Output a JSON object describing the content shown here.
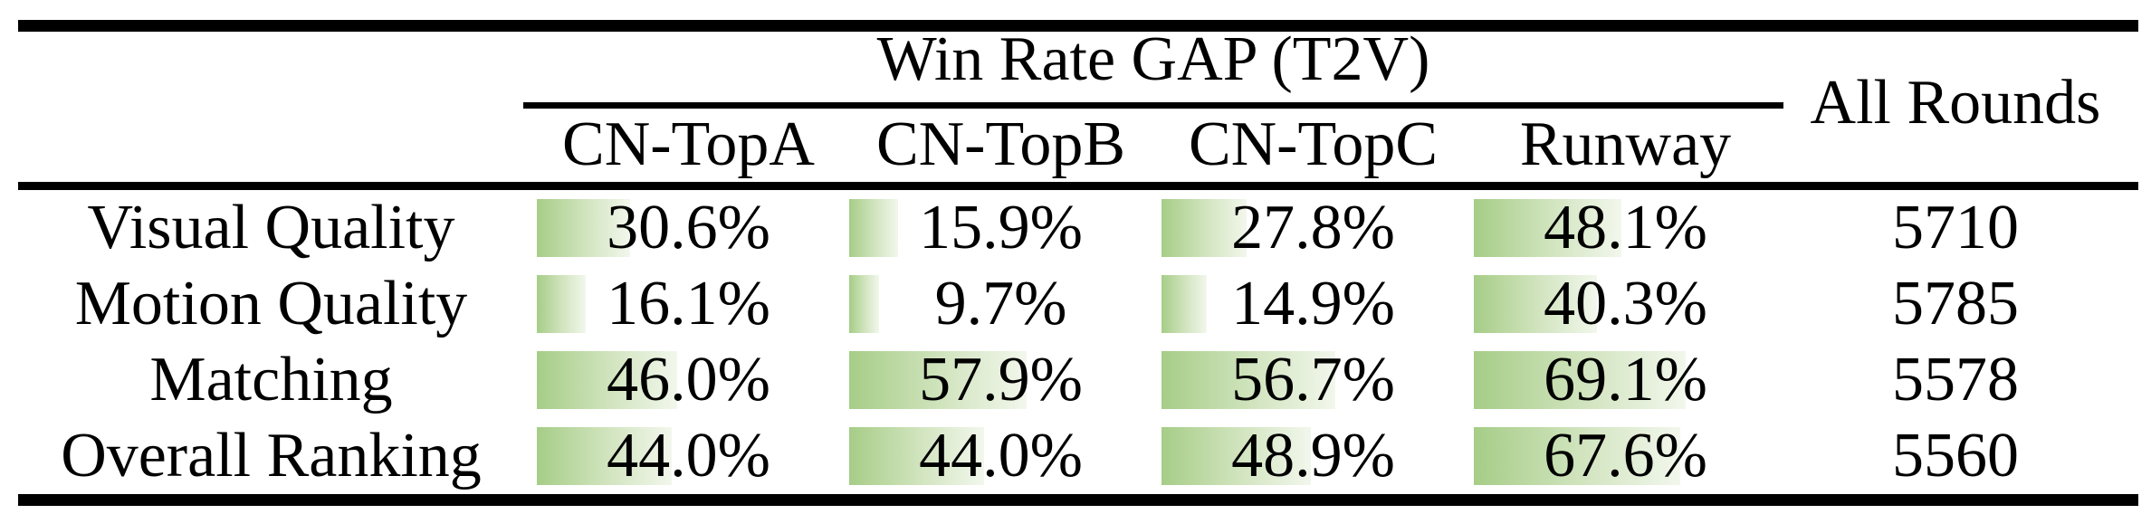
{
  "table": {
    "title": "Win Rate GAP (T2V)",
    "all_rounds_header": "All Rounds",
    "columns": [
      "CN-TopA",
      "CN-TopB",
      "CN-TopC",
      "Runway"
    ],
    "rows": [
      {
        "label": "Visual Quality",
        "values": [
          "30.6%",
          "15.9%",
          "27.8%",
          "48.1%"
        ],
        "all_rounds": "5710"
      },
      {
        "label": "Motion Quality",
        "values": [
          "16.1%",
          "9.7%",
          "14.9%",
          "40.3%"
        ],
        "all_rounds": "5785"
      },
      {
        "label": "Matching",
        "values": [
          "46.0%",
          "57.9%",
          "56.7%",
          "69.1%"
        ],
        "all_rounds": "5578"
      },
      {
        "label": "Overall Ranking",
        "values": [
          "44.0%",
          "44.0%",
          "48.9%",
          "67.6%"
        ],
        "all_rounds": "5560"
      }
    ],
    "bar_colors": {
      "start": "#a6cd87",
      "mid": "#d3e5c1",
      "end": "#f2f7ec"
    },
    "text_color": "#000000",
    "rule_color": "#000000"
  },
  "chart_data": {
    "type": "table",
    "title": "Win Rate GAP (T2V)",
    "columns": [
      "CN-TopA",
      "CN-TopB",
      "CN-TopC",
      "Runway",
      "All Rounds"
    ],
    "rows": [
      {
        "label": "Visual Quality",
        "win_rate_gap_pct": [
          30.6,
          15.9,
          27.8,
          48.1
        ],
        "all_rounds": 5710
      },
      {
        "label": "Motion Quality",
        "win_rate_gap_pct": [
          16.1,
          9.7,
          14.9,
          40.3
        ],
        "all_rounds": 5785
      },
      {
        "label": "Matching",
        "win_rate_gap_pct": [
          46.0,
          57.9,
          56.7,
          69.1
        ],
        "all_rounds": 5578
      },
      {
        "label": "Overall Ranking",
        "win_rate_gap_pct": [
          44.0,
          44.0,
          48.9,
          67.6
        ],
        "all_rounds": 5560
      }
    ],
    "layout": "in-cell green gradient bars, bar length proportional to percentage"
  }
}
